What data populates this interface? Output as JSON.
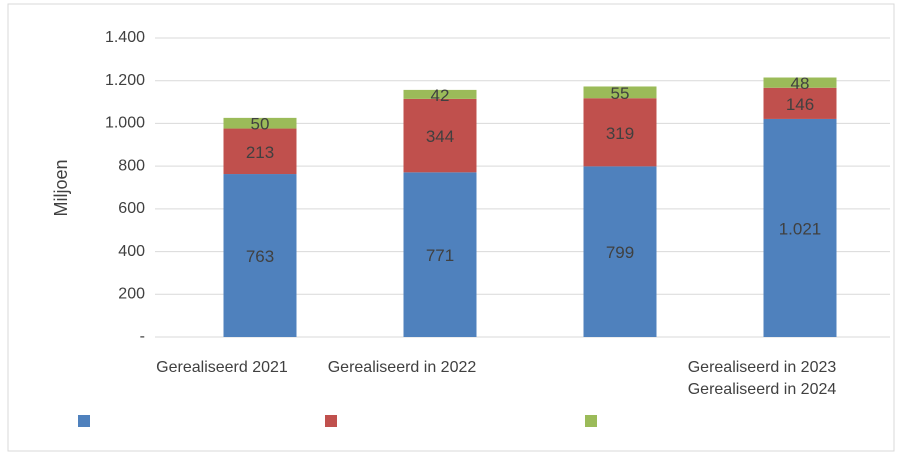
{
  "chart_data": {
    "type": "stacked_bar",
    "y_axis_label": "Miljoen",
    "categories": [
      "Gerealiseerd 2021",
      "Gerealiseerd in 2022",
      null,
      "Gerealiseerd in 2023\nGerealiseerd in 2024"
    ],
    "series": [
      {
        "color": "#4f81bd",
        "values": [
          763,
          771,
          799,
          1021
        ],
        "value_labels": [
          "763",
          "771",
          "799",
          "1.021"
        ]
      },
      {
        "color": "#c0504d",
        "values": [
          213,
          344,
          319,
          146
        ]
      },
      {
        "color": "#9bbb59",
        "values": [
          50,
          42,
          55,
          48
        ]
      }
    ],
    "ylim": [
      0,
      1400
    ],
    "yticks": [
      {
        "value": 0,
        "label": "-"
      },
      200,
      400,
      600,
      800,
      {
        "value": 1000,
        "label": "1.000"
      },
      {
        "value": 1200,
        "label": "1.200"
      },
      {
        "value": 1400,
        "label": "1.400"
      }
    ],
    "grid": true
  }
}
